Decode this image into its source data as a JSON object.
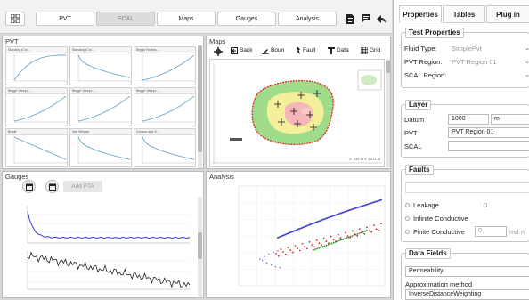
{
  "toolbar": {
    "tabs": [
      {
        "label": "PVT",
        "active": false
      },
      {
        "label": "SCAL",
        "active": true
      },
      {
        "label": "Maps",
        "active": false
      },
      {
        "label": "Gauges",
        "active": false
      },
      {
        "label": "Analysis",
        "active": false
      }
    ],
    "icons": [
      "grid-icon",
      "document-icon",
      "comment-icon",
      "back-arrow-icon"
    ]
  },
  "pvt": {
    "title": "PVT",
    "plots": [
      "Standing (Col...",
      "Standing (Col...",
      "Beggs Robins...",
      "Begge Vanqui...",
      "Begge Vanqui...",
      "Begge Vanqui...",
      "Bradil",
      "Van Wingen",
      "Dodson and S..."
    ]
  },
  "maps": {
    "title": "Maps",
    "buttons": [
      "Back",
      "Boun",
      "Fault",
      "Data",
      "Grid"
    ],
    "scale_text": "X: 231 m  Y: 1271 m"
  },
  "gauges": {
    "title": "Gauges",
    "add_pta": "Add PTA"
  },
  "analysis": {
    "title": "Analysis"
  },
  "right": {
    "tabs": [
      {
        "label": "Properties",
        "active": true
      },
      {
        "label": "Tables",
        "active": false
      },
      {
        "label": "Plug in",
        "active": false
      }
    ],
    "test_properties": {
      "title": "Test Properties",
      "fluid_type_label": "Fluid Type:",
      "fluid_type_value": "SimplePvt",
      "pvt_region_label": "PVT Region:",
      "pvt_region_value": "PVT Region 01",
      "scal_region_label": "SCAL Region:"
    },
    "layer": {
      "title": "Layer",
      "datum_label": "Datum",
      "datum_value": "1000",
      "datum_unit": "m",
      "pvt_label": "PVT",
      "pvt_value": "PVT Region 01",
      "scal_label": "SCAL"
    },
    "faults": {
      "title": "Faults",
      "leakage_label": "Leakage",
      "leakage_value": "0",
      "infinite_label": "Infinite Conductive",
      "finite_label": "Finite Conductive",
      "finite_value": "0",
      "finite_unit": "md·n"
    },
    "data_fields": {
      "title": "Data Fields",
      "field_value": "Permeability",
      "approx_label": "Approximation method",
      "approx_value": "InverseDistanceWeighting"
    }
  },
  "colors": {
    "blue_series": "#3a3ad8",
    "red_series": "#dd2222",
    "green_series": "#2a8a2a",
    "contour_outer": "#e03030",
    "map_green": "#9fdc8a",
    "map_yellow": "#f3ef9a",
    "map_pink": "#f4b6b6"
  }
}
